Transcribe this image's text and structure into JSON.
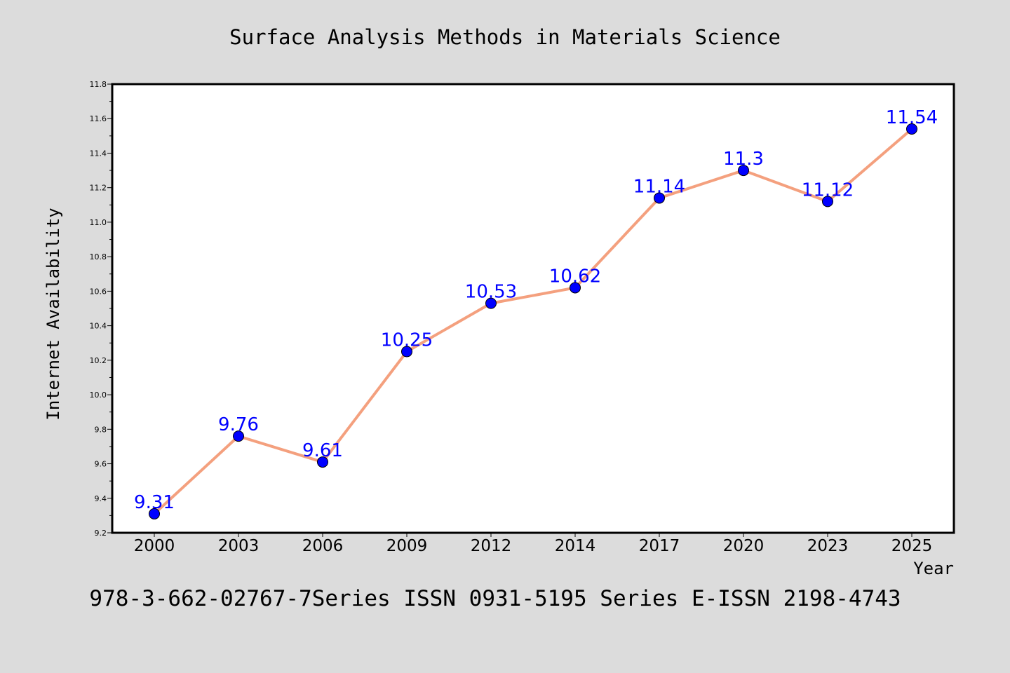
{
  "chart_data": {
    "type": "line",
    "title": "Surface Analysis Methods in Materials Science",
    "xlabel": "Year",
    "ylabel": "Internet Availability",
    "categories": [
      "2000",
      "2003",
      "2006",
      "2009",
      "2012",
      "2014",
      "2017",
      "2020",
      "2023",
      "2025"
    ],
    "series": [
      {
        "values": [
          9.31,
          9.76,
          9.61,
          10.25,
          10.53,
          10.62,
          11.14,
          11.3,
          11.12,
          11.54
        ],
        "data_labels": [
          "9.31",
          "9.76",
          "9.61",
          "10.25",
          "10.53",
          "10.62",
          "11.14",
          "11.3",
          "11.12",
          "11.54"
        ],
        "line_color": "#f4a07e",
        "marker_color": "#0000ff",
        "label_color": "#0000ff"
      }
    ],
    "ylim": [
      9.2,
      11.8
    ],
    "yticks": [
      "9.2",
      "9.4",
      "9.6",
      "9.8",
      "10.0",
      "10.2",
      "10.4",
      "10.6",
      "10.8",
      "11.0",
      "11.2",
      "11.4",
      "11.6",
      "11.8"
    ],
    "grid": false,
    "legend": "none"
  },
  "footer": {
    "text": "978-3-662-02767-7Series ISSN 0931-5195 Series E-ISSN 2198-4743"
  },
  "colors": {
    "background": "#dcdcdc",
    "plot_background": "#ffffff",
    "axis": "#000000"
  }
}
